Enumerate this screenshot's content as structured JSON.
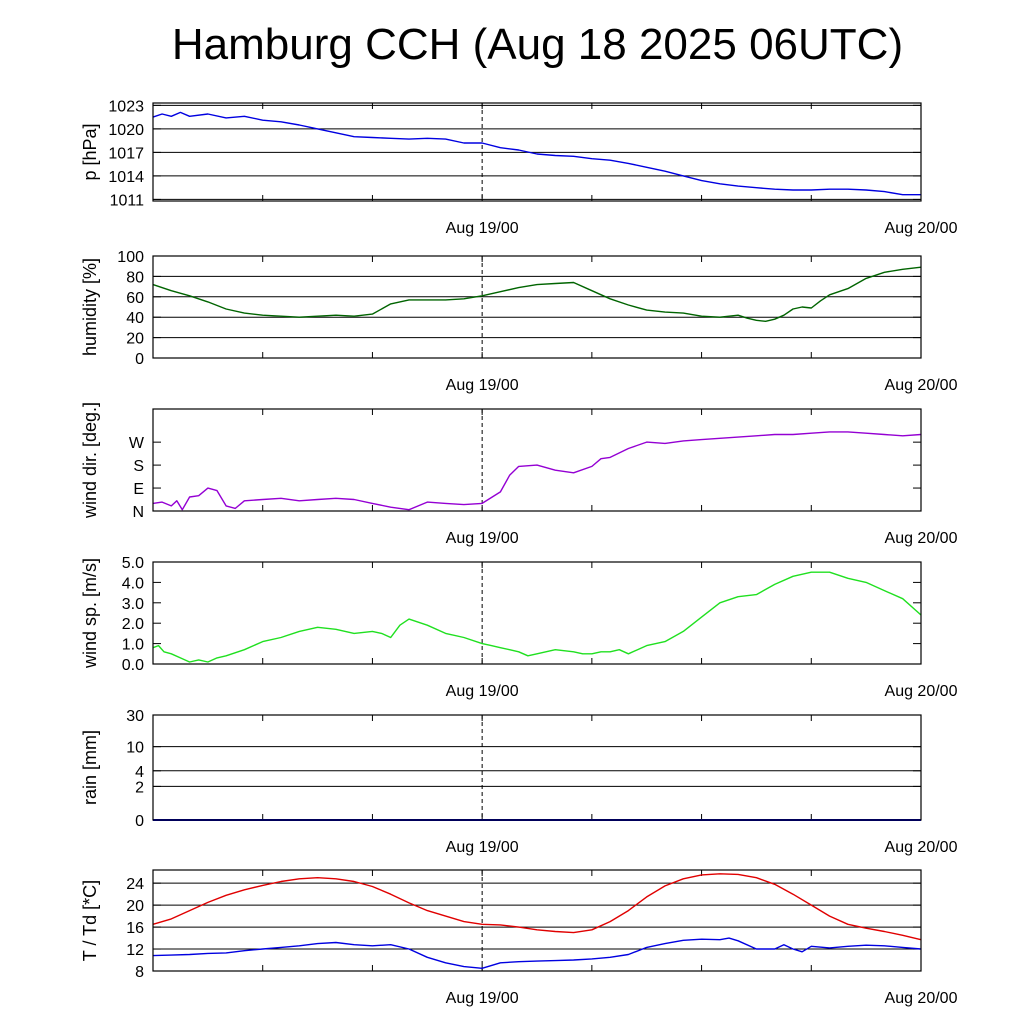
{
  "title": "Hamburg CCH (Aug 18 2025 06UTC)",
  "colors": {
    "pressure": "#0000e0",
    "humidity": "#006400",
    "wind_dir": "#9400d3",
    "wind_speed": "#20e020",
    "rain": "#0000e0",
    "temperature": "#e00000",
    "dewpoint": "#0000e0"
  },
  "chart_data": [
    {
      "type": "line",
      "ylabel": "p [hPa]",
      "ylim": [
        1010.8,
        1023.3
      ],
      "yticks": [
        1011,
        1014,
        1017,
        1020,
        1023
      ],
      "ytick_labels": [
        "1011",
        "1014",
        "1017",
        "1020",
        "1023"
      ],
      "xticks": [
        "Aug 19/00",
        "Aug 20/00"
      ],
      "grid": true,
      "series": [
        {
          "x": [
            0,
            0.5,
            1,
            1.5,
            2,
            3,
            4,
            5,
            6,
            7,
            8,
            9,
            10,
            11,
            12,
            13,
            14,
            15,
            16,
            17,
            18,
            19,
            20,
            21,
            22,
            23,
            24,
            25,
            26,
            27,
            28,
            29,
            30,
            31,
            32,
            33,
            34,
            35,
            36,
            37,
            38,
            39,
            40,
            41,
            42
          ],
          "y": [
            1021.5,
            1021.9,
            1021.6,
            1022.1,
            1021.6,
            1021.9,
            1021.4,
            1021.6,
            1021.1,
            1020.9,
            1020.5,
            1020.0,
            1019.5,
            1019.0,
            1018.9,
            1018.8,
            1018.7,
            1018.8,
            1018.7,
            1018.2,
            1018.2,
            1017.6,
            1017.3,
            1016.8,
            1016.6,
            1016.5,
            1016.2,
            1016.0,
            1015.6,
            1015.1,
            1014.6,
            1014.0,
            1013.4,
            1013.0,
            1012.7,
            1012.5,
            1012.3,
            1012.2,
            1012.2,
            1012.3,
            1012.3,
            1012.2,
            1012.0,
            1011.6,
            1011.6
          ]
        }
      ]
    },
    {
      "type": "line",
      "ylabel": "humidity [%]",
      "ylim": [
        0,
        100
      ],
      "yticks": [
        0,
        20,
        40,
        60,
        80,
        100
      ],
      "ytick_labels": [
        "0",
        "20",
        "40",
        "60",
        "80",
        "100"
      ],
      "xticks": [
        "Aug 19/00",
        "Aug 20/00"
      ],
      "grid": true,
      "series": [
        {
          "x": [
            0,
            1,
            2,
            3,
            4,
            5,
            6,
            7,
            8,
            9,
            10,
            11,
            12,
            13,
            14,
            15,
            16,
            17,
            18,
            19,
            20,
            21,
            22,
            23,
            24,
            25,
            26,
            27,
            28,
            29,
            30,
            31,
            32,
            32.5,
            33,
            33.5,
            34,
            34.5,
            35,
            35.5,
            36,
            36.5,
            37,
            38,
            39,
            40,
            41,
            42
          ],
          "y": [
            72,
            66,
            61,
            55,
            48,
            44,
            42,
            41,
            40,
            41,
            42,
            41,
            43,
            53,
            57,
            57,
            57,
            58,
            61,
            65,
            69,
            72,
            73,
            74,
            66,
            58,
            52,
            47,
            45,
            44,
            41,
            40,
            42,
            39,
            37,
            36,
            38,
            42,
            48,
            50,
            49,
            56,
            62,
            68,
            78,
            84,
            87,
            89
          ]
        }
      ]
    },
    {
      "type": "line",
      "ylabel": "wind dir. [deg.]",
      "ylim": [
        0,
        400
      ],
      "yticks": [
        0,
        90,
        180,
        270
      ],
      "ytick_labels": [
        "N",
        "E",
        "S",
        "W"
      ],
      "xticks": [
        "Aug 19/00",
        "Aug 20/00"
      ],
      "grid": false,
      "series": [
        {
          "x": [
            0,
            0.5,
            1,
            1.3,
            1.6,
            2,
            2.5,
            3,
            3.5,
            4,
            4.5,
            5,
            6,
            7,
            8,
            9,
            10,
            11,
            12,
            13,
            14,
            15,
            16,
            17,
            18,
            19,
            19.5,
            20,
            21,
            22,
            23,
            24,
            24.5,
            25,
            26,
            27,
            28,
            29,
            30,
            31,
            32,
            33,
            34,
            35,
            36,
            37,
            38,
            39,
            40,
            41,
            42
          ],
          "y": [
            30,
            35,
            20,
            40,
            5,
            55,
            60,
            90,
            80,
            20,
            10,
            40,
            45,
            50,
            40,
            45,
            50,
            45,
            30,
            15,
            5,
            35,
            30,
            25,
            30,
            75,
            140,
            175,
            180,
            160,
            150,
            175,
            205,
            210,
            245,
            270,
            265,
            275,
            280,
            285,
            290,
            295,
            300,
            300,
            305,
            310,
            310,
            305,
            300,
            295,
            300
          ]
        }
      ]
    },
    {
      "type": "line",
      "ylabel": "wind sp. [m/s]",
      "ylim": [
        0,
        5
      ],
      "yticks": [
        0,
        1,
        2,
        3,
        4,
        5
      ],
      "ytick_labels": [
        "0.0",
        "1.0",
        "2.0",
        "3.0",
        "4.0",
        "5.0"
      ],
      "xticks": [
        "Aug 19/00",
        "Aug 20/00"
      ],
      "grid": false,
      "series": [
        {
          "x": [
            0,
            0.3,
            0.6,
            1,
            1.5,
            2,
            2.5,
            3,
            3.5,
            4,
            5,
            6,
            7,
            8,
            9,
            10,
            11,
            12,
            12.5,
            13,
            13.5,
            14,
            15,
            16,
            17,
            18,
            18.5,
            19,
            19.5,
            20,
            20.5,
            21,
            22,
            23,
            23.5,
            24,
            24.5,
            25,
            25.5,
            26,
            27,
            28,
            29,
            30,
            31,
            32,
            33,
            34,
            35,
            36,
            37,
            38,
            39,
            40,
            41,
            42
          ],
          "y": [
            0.8,
            0.9,
            0.6,
            0.5,
            0.3,
            0.1,
            0.2,
            0.1,
            0.3,
            0.4,
            0.7,
            1.1,
            1.3,
            1.6,
            1.8,
            1.7,
            1.5,
            1.6,
            1.5,
            1.3,
            1.9,
            2.2,
            1.9,
            1.5,
            1.3,
            1.0,
            0.9,
            0.8,
            0.7,
            0.6,
            0.4,
            0.5,
            0.7,
            0.6,
            0.5,
            0.5,
            0.6,
            0.6,
            0.7,
            0.5,
            0.9,
            1.1,
            1.6,
            2.3,
            3.0,
            3.3,
            3.4,
            3.9,
            4.3,
            4.5,
            4.5,
            4.2,
            4.0,
            3.6,
            3.2,
            2.4
          ]
        }
      ]
    },
    {
      "type": "line",
      "ylabel": "rain [mm]",
      "ylim": [
        0,
        30
      ],
      "yticks": [
        0,
        2,
        4,
        10,
        30
      ],
      "ytick_labels": [
        "0",
        "2",
        "4",
        "10",
        "30"
      ],
      "xticks": [
        "Aug 19/00",
        "Aug 20/00"
      ],
      "grid": true,
      "series": [
        {
          "x": [
            0,
            42
          ],
          "y": [
            0,
            0
          ]
        }
      ]
    },
    {
      "type": "line",
      "ylabel": "T / Td [*C]",
      "ylim": [
        8,
        26.4
      ],
      "yticks": [
        8,
        12,
        16,
        20,
        24
      ],
      "ytick_labels": [
        "8",
        "12",
        "16",
        "20",
        "24"
      ],
      "xticks": [
        "Aug 19/00",
        "Aug 20/00"
      ],
      "grid": true,
      "series": [
        {
          "x": [
            0,
            1,
            2,
            3,
            4,
            5,
            6,
            7,
            8,
            9,
            10,
            11,
            12,
            13,
            14,
            15,
            16,
            17,
            18,
            19,
            20,
            21,
            22,
            23,
            24,
            25,
            26,
            27,
            28,
            29,
            30,
            31,
            32,
            33,
            34,
            35,
            36,
            37,
            38,
            39,
            40,
            41,
            42
          ],
          "y": [
            16.5,
            17.5,
            19.0,
            20.5,
            21.8,
            22.8,
            23.6,
            24.3,
            24.8,
            25.0,
            24.8,
            24.3,
            23.4,
            22.0,
            20.4,
            19.0,
            18.0,
            17.0,
            16.5,
            16.4,
            16.0,
            15.5,
            15.2,
            15.0,
            15.5,
            17.0,
            19.0,
            21.5,
            23.5,
            24.8,
            25.5,
            25.7,
            25.6,
            25.0,
            23.8,
            22.0,
            20.0,
            18.0,
            16.5,
            15.8,
            15.2,
            14.5,
            13.7
          ]
        },
        {
          "x": [
            0,
            1,
            2,
            3,
            4,
            5,
            6,
            7,
            8,
            9,
            10,
            11,
            12,
            13,
            14,
            15,
            16,
            17,
            18,
            19,
            20,
            21,
            22,
            23,
            24,
            25,
            26,
            27,
            28,
            29,
            30,
            31,
            31.5,
            32,
            33,
            34,
            34.5,
            35,
            35.5,
            36,
            37,
            38,
            39,
            40,
            41,
            42
          ],
          "y": [
            10.8,
            10.9,
            11.0,
            11.2,
            11.3,
            11.7,
            12.0,
            12.3,
            12.6,
            13.0,
            13.2,
            12.8,
            12.6,
            12.8,
            12.0,
            10.5,
            9.5,
            8.8,
            8.5,
            9.5,
            9.7,
            9.8,
            9.9,
            10.0,
            10.2,
            10.5,
            11.0,
            12.3,
            13.0,
            13.6,
            13.8,
            13.7,
            14.0,
            13.5,
            12.0,
            12.0,
            12.8,
            12.0,
            11.5,
            12.5,
            12.2,
            12.5,
            12.7,
            12.6,
            12.3,
            12.0
          ]
        }
      ]
    }
  ]
}
